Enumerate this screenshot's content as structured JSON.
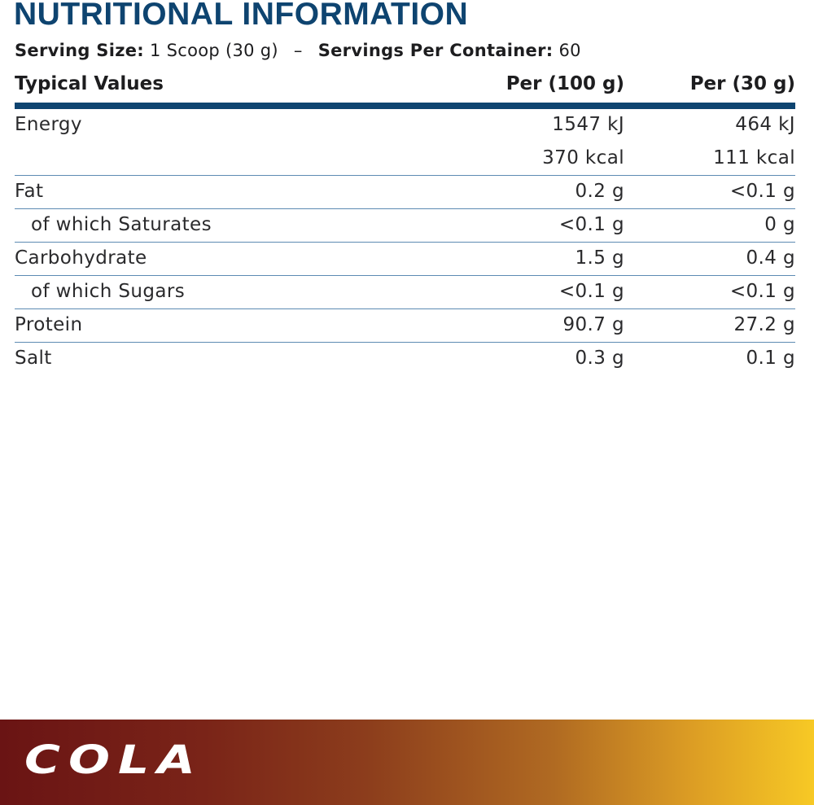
{
  "title": "NUTRITIONAL INFORMATION",
  "serving": {
    "size_label": "Serving Size:",
    "size_value": "1 Scoop (30 g)",
    "separator": "–",
    "per_container_label": "Servings Per Container:",
    "per_container_value": "60"
  },
  "table": {
    "headers": [
      "Typical Values",
      "Per (100 g)",
      "Per (30 g)"
    ],
    "rows": [
      {
        "name": "Energy",
        "per100": "1547 kJ",
        "per30": "464 kJ"
      },
      {
        "name": "",
        "per100": "370 kcal",
        "per30": "111 kcal"
      },
      {
        "name": "Fat",
        "per100": "0.2 g",
        "per30": "<0.1 g"
      },
      {
        "name": "of which Saturates",
        "per100": "<0.1 g",
        "per30": "0 g"
      },
      {
        "name": "Carbohydrate",
        "per100": "1.5 g",
        "per30": "0.4 g"
      },
      {
        "name": "of which Sugars",
        "per100": "<0.1 g",
        "per30": "<0.1 g"
      },
      {
        "name": "Protein",
        "per100": "90.7 g",
        "per30": "27.2 g"
      },
      {
        "name": "Salt",
        "per100": "0.3 g",
        "per30": "0.1 g"
      }
    ]
  },
  "flavour": "COLA",
  "colors": {
    "title": "#0e4470",
    "header_rule": "#0e4470",
    "row_rule": "#5d8bb3",
    "bar_gradient_start": "#6a1414",
    "bar_gradient_end": "#f7c925"
  }
}
